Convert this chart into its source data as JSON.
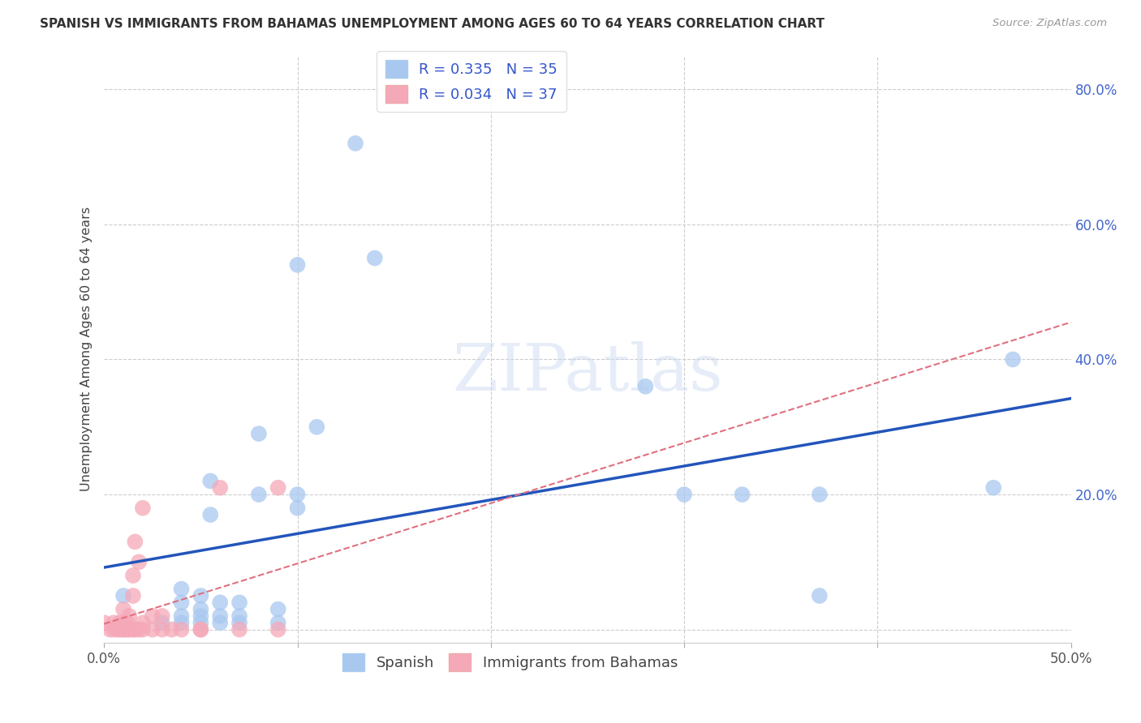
{
  "title": "SPANISH VS IMMIGRANTS FROM BAHAMAS UNEMPLOYMENT AMONG AGES 60 TO 64 YEARS CORRELATION CHART",
  "source": "Source: ZipAtlas.com",
  "ylabel": "Unemployment Among Ages 60 to 64 years",
  "xlim": [
    0.0,
    0.5
  ],
  "ylim": [
    -0.02,
    0.85
  ],
  "xticks": [
    0.0,
    0.1,
    0.2,
    0.3,
    0.4,
    0.5
  ],
  "yticks": [
    0.0,
    0.2,
    0.4,
    0.6,
    0.8
  ],
  "ytick_labels": [
    "",
    "20.0%",
    "40.0%",
    "60.0%",
    "80.0%"
  ],
  "xtick_labels": [
    "0.0%",
    "",
    "",
    "",
    "",
    "50.0%"
  ],
  "grid_color": "#cccccc",
  "background_color": "#ffffff",
  "spanish_color": "#a8c8f0",
  "bahamas_color": "#f5a8b8",
  "spanish_line_color": "#2255bb",
  "bahamas_line_color": "#e07080",
  "spanish_R": 0.335,
  "spanish_N": 35,
  "bahamas_R": 0.034,
  "bahamas_N": 37,
  "legend_label_spanish": "Spanish",
  "legend_label_bahamas": "Immigrants from Bahamas",
  "watermark": "ZIPatlas",
  "spanish_x": [
    0.01,
    0.03,
    0.04,
    0.04,
    0.04,
    0.04,
    0.05,
    0.05,
    0.05,
    0.05,
    0.055,
    0.055,
    0.06,
    0.06,
    0.06,
    0.07,
    0.07,
    0.07,
    0.08,
    0.08,
    0.09,
    0.09,
    0.1,
    0.1,
    0.1,
    0.11,
    0.13,
    0.14,
    0.28,
    0.3,
    0.33,
    0.37,
    0.37,
    0.46,
    0.47
  ],
  "spanish_y": [
    0.05,
    0.01,
    0.01,
    0.02,
    0.04,
    0.06,
    0.01,
    0.02,
    0.03,
    0.05,
    0.17,
    0.22,
    0.01,
    0.02,
    0.04,
    0.01,
    0.02,
    0.04,
    0.2,
    0.29,
    0.01,
    0.03,
    0.18,
    0.2,
    0.54,
    0.3,
    0.72,
    0.55,
    0.36,
    0.2,
    0.2,
    0.2,
    0.05,
    0.21,
    0.4
  ],
  "bahamas_x": [
    0.0,
    0.003,
    0.005,
    0.005,
    0.007,
    0.008,
    0.008,
    0.01,
    0.01,
    0.01,
    0.01,
    0.012,
    0.012,
    0.013,
    0.013,
    0.015,
    0.015,
    0.015,
    0.016,
    0.016,
    0.018,
    0.018,
    0.02,
    0.02,
    0.02,
    0.025,
    0.025,
    0.03,
    0.03,
    0.035,
    0.04,
    0.05,
    0.05,
    0.06,
    0.07,
    0.09,
    0.09
  ],
  "bahamas_y": [
    0.01,
    0.0,
    0.0,
    0.01,
    0.0,
    0.0,
    0.01,
    0.0,
    0.0,
    0.01,
    0.03,
    0.0,
    0.01,
    0.0,
    0.02,
    0.0,
    0.05,
    0.08,
    0.0,
    0.13,
    0.0,
    0.1,
    0.0,
    0.01,
    0.18,
    0.0,
    0.02,
    0.0,
    0.02,
    0.0,
    0.0,
    0.0,
    0.0,
    0.21,
    0.0,
    0.21,
    0.0
  ]
}
